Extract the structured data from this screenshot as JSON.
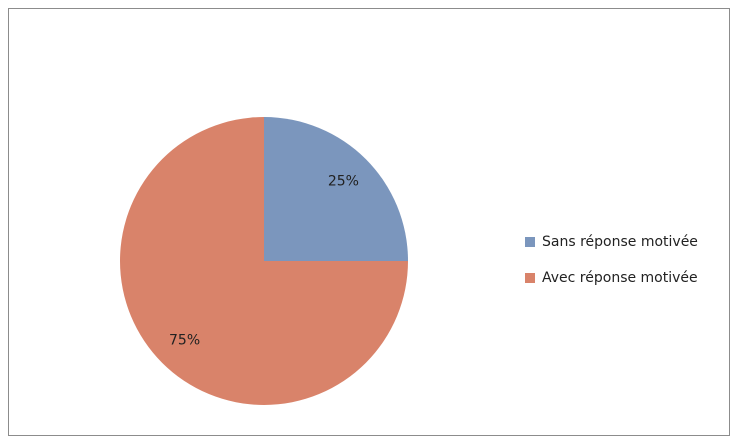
{
  "chart_data": {
    "type": "pie",
    "categories": [
      "Sans réponse motivée",
      "Avec réponse motivée"
    ],
    "values": [
      25,
      75
    ],
    "value_labels": [
      "25%",
      "75%"
    ],
    "colors": [
      "#7b96bd",
      "#d9836a"
    ],
    "legend": "right"
  }
}
